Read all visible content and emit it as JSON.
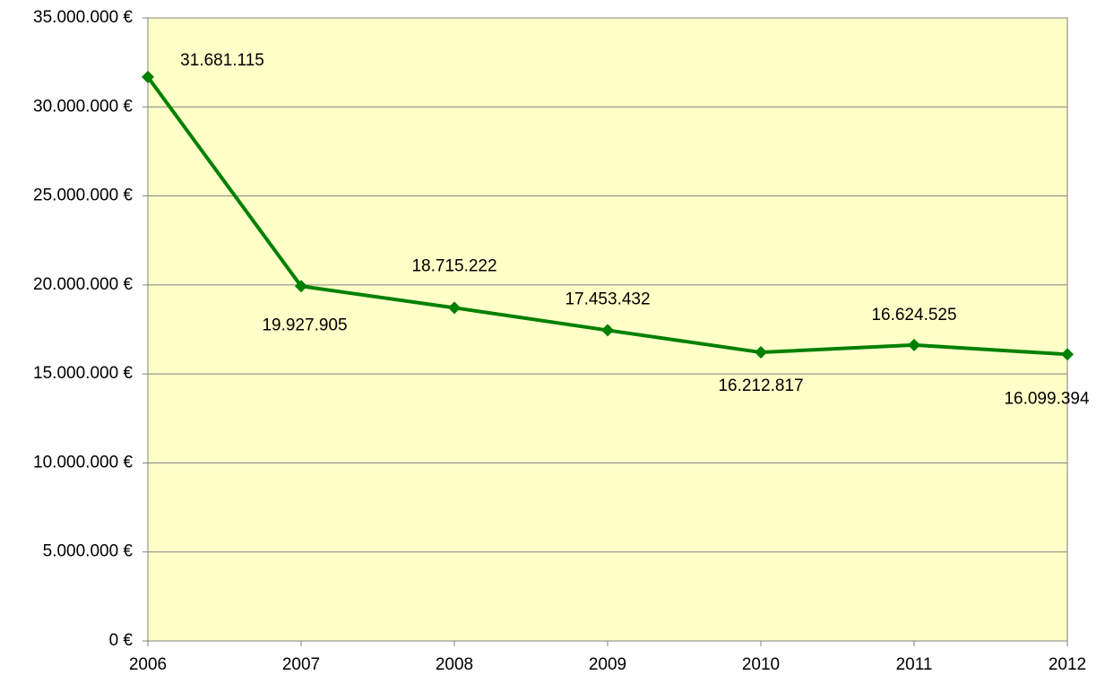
{
  "chart_data": {
    "type": "line",
    "x": [
      2006,
      2007,
      2008,
      2009,
      2010,
      2011,
      2012
    ],
    "xlim": [
      2006,
      2012
    ],
    "xticks": [
      2006,
      2007,
      2008,
      2009,
      2010,
      2011,
      2012
    ],
    "series": [
      {
        "color": "#008000",
        "values": [
          31681115,
          19927905,
          18715222,
          17453432,
          16212817,
          16624525,
          16099394
        ],
        "value_labels": [
          "31.681.115",
          "19.927.905",
          "18.715.222",
          "17.453.432",
          "16.212.817",
          "16.624.525",
          "16.099.394"
        ]
      }
    ],
    "ylim": [
      0,
      35000000
    ],
    "yticks": [
      {
        "value": 0,
        "label": "0 €"
      },
      {
        "value": 5000000,
        "label": "5.000.000 €"
      },
      {
        "value": 10000000,
        "label": "10.000.000 €"
      },
      {
        "value": 15000000,
        "label": "15.000.000 €"
      },
      {
        "value": 20000000,
        "label": "20.000.000 €"
      },
      {
        "value": 25000000,
        "label": "25.000.000 €"
      },
      {
        "value": 30000000,
        "label": "30.000.000 €"
      },
      {
        "value": 35000000,
        "label": "35.000.000 €"
      }
    ],
    "grid": true,
    "plot_background": "#ffffc8"
  }
}
